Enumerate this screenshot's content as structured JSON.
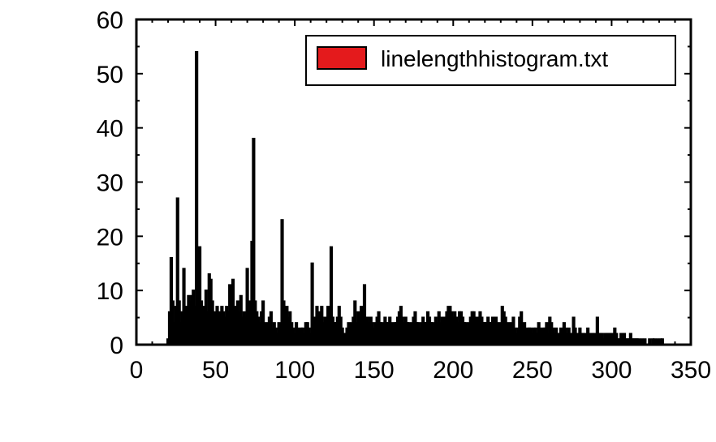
{
  "chart_data": {
    "type": "bar",
    "title": "",
    "xlabel": "",
    "ylabel": "",
    "xlim": [
      0,
      350
    ],
    "ylim": [
      0,
      60
    ],
    "xticks": [
      "0",
      "50",
      "100",
      "150",
      "200",
      "250",
      "300",
      "350"
    ],
    "yticks": [
      "0",
      "10",
      "20",
      "30",
      "40",
      "50",
      "60"
    ],
    "grid": false,
    "legend_position": "top-right",
    "series": [
      {
        "name": "linelengthhistogram.txt",
        "color": "#e41a1c",
        "outline_color": "#000000",
        "x": [
          20,
          21,
          22,
          23,
          24,
          25,
          26,
          27,
          28,
          29,
          30,
          31,
          32,
          33,
          34,
          35,
          36,
          37,
          38,
          39,
          40,
          41,
          42,
          43,
          44,
          45,
          46,
          47,
          48,
          49,
          50,
          51,
          52,
          53,
          54,
          55,
          56,
          57,
          58,
          59,
          60,
          61,
          62,
          63,
          64,
          65,
          66,
          67,
          68,
          69,
          70,
          71,
          72,
          73,
          74,
          75,
          76,
          77,
          78,
          79,
          80,
          81,
          82,
          83,
          84,
          85,
          86,
          87,
          88,
          89,
          90,
          91,
          92,
          93,
          94,
          95,
          96,
          97,
          98,
          99,
          100,
          101,
          102,
          103,
          104,
          105,
          106,
          107,
          108,
          109,
          110,
          111,
          112,
          113,
          114,
          115,
          116,
          117,
          118,
          119,
          120,
          121,
          122,
          123,
          124,
          125,
          126,
          127,
          128,
          129,
          130,
          131,
          132,
          133,
          134,
          135,
          136,
          137,
          138,
          139,
          140,
          141,
          142,
          143,
          144,
          145,
          146,
          147,
          148,
          149,
          150,
          151,
          152,
          153,
          154,
          155,
          156,
          157,
          158,
          159,
          160,
          161,
          162,
          163,
          164,
          165,
          166,
          167,
          168,
          169,
          170,
          171,
          172,
          173,
          174,
          175,
          176,
          177,
          178,
          179,
          180,
          181,
          182,
          183,
          184,
          185,
          186,
          187,
          188,
          189,
          190,
          191,
          192,
          193,
          194,
          195,
          196,
          197,
          198,
          199,
          200,
          201,
          202,
          203,
          204,
          205,
          206,
          207,
          208,
          209,
          210,
          211,
          212,
          213,
          214,
          215,
          216,
          217,
          218,
          219,
          220,
          221,
          222,
          223,
          224,
          225,
          226,
          227,
          228,
          229,
          230,
          231,
          232,
          233,
          234,
          235,
          236,
          237,
          238,
          239,
          240,
          241,
          242,
          243,
          244,
          245,
          246,
          247,
          248,
          249,
          250,
          251,
          252,
          253,
          254,
          255,
          256,
          257,
          258,
          259,
          260,
          261,
          262,
          263,
          264,
          265,
          266,
          267,
          268,
          269,
          270,
          271,
          272,
          273,
          274,
          275,
          276,
          277,
          278,
          279,
          280,
          281,
          282,
          283,
          284,
          285,
          286,
          287,
          288,
          289,
          290,
          291,
          292,
          293,
          294,
          295,
          296,
          297,
          298,
          299,
          300,
          301,
          302,
          303,
          304,
          305,
          306,
          307,
          308,
          309,
          310,
          311,
          312,
          313,
          314,
          315,
          316,
          317,
          318,
          319,
          320,
          321,
          322,
          323,
          324,
          325,
          326,
          327,
          328,
          329,
          330,
          331,
          332,
          333,
          334,
          335
        ],
        "values": [
          1,
          6,
          16,
          8,
          4,
          7,
          27,
          8,
          4,
          6,
          14,
          7,
          5,
          9,
          8,
          9,
          10,
          7,
          54,
          10,
          18,
          8,
          6,
          7,
          10,
          6,
          13,
          12,
          8,
          5,
          6,
          7,
          5,
          6,
          7,
          6,
          5,
          7,
          6,
          11,
          9,
          12,
          5,
          7,
          8,
          6,
          9,
          5,
          6,
          5,
          14,
          8,
          6,
          19,
          38,
          8,
          6,
          5,
          4,
          6,
          8,
          4,
          3,
          4,
          5,
          6,
          3,
          4,
          3,
          2,
          4,
          3,
          23,
          8,
          6,
          7,
          5,
          6,
          4,
          3,
          2,
          4,
          3,
          2,
          3,
          3,
          2,
          4,
          4,
          3,
          2,
          15,
          4,
          5,
          7,
          3,
          6,
          7,
          4,
          5,
          5,
          7,
          4,
          18,
          5,
          4,
          4,
          5,
          7,
          5,
          3,
          2,
          2,
          3,
          4,
          3,
          4,
          5,
          8,
          4,
          6,
          5,
          7,
          6,
          11,
          4,
          5,
          4,
          5,
          4,
          3,
          4,
          5,
          6,
          4,
          4,
          3,
          5,
          4,
          4,
          5,
          4,
          3,
          4,
          4,
          5,
          6,
          7,
          5,
          4,
          5,
          4,
          4,
          3,
          4,
          5,
          6,
          4,
          4,
          3,
          4,
          5,
          4,
          4,
          6,
          5,
          4,
          4,
          3,
          5,
          4,
          6,
          4,
          5,
          4,
          5,
          6,
          7,
          7,
          6,
          5,
          6,
          5,
          4,
          6,
          6,
          5,
          4,
          4,
          3,
          4,
          5,
          6,
          6,
          5,
          4,
          5,
          6,
          5,
          4,
          4,
          4,
          5,
          4,
          4,
          5,
          4,
          5,
          4,
          3,
          4,
          7,
          6,
          5,
          3,
          4,
          3,
          4,
          5,
          3,
          2,
          3,
          5,
          6,
          3,
          4,
          2,
          3,
          3,
          3,
          2,
          3,
          3,
          2,
          4,
          3,
          2,
          3,
          3,
          4,
          2,
          5,
          4,
          3,
          2,
          3,
          2,
          2,
          3,
          1,
          4,
          3,
          2,
          3,
          2,
          2,
          5,
          3,
          2,
          1,
          3,
          2,
          2,
          2,
          2,
          3,
          2,
          1,
          2,
          2,
          1,
          5,
          2,
          2,
          2,
          1,
          2,
          2,
          2,
          2,
          2,
          1,
          3,
          2,
          1,
          1,
          2,
          1,
          2,
          1,
          1,
          1,
          2,
          1,
          1,
          1,
          1,
          1,
          0,
          1,
          0,
          1,
          0,
          0,
          1,
          0,
          1,
          1,
          0,
          1,
          0,
          1,
          1,
          0,
          0,
          0
        ]
      }
    ]
  }
}
